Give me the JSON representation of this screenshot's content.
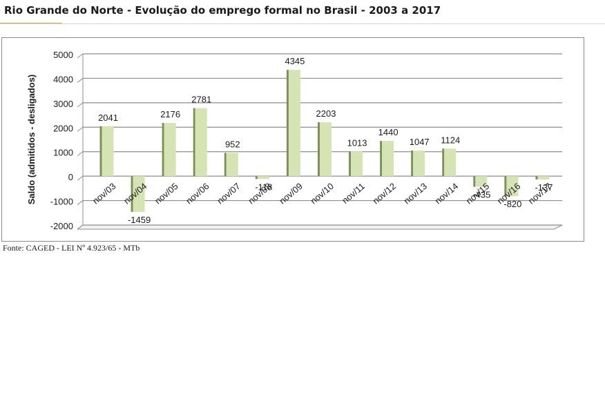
{
  "title": "Rio Grande do Norte - Evolução do emprego formal no Brasil - 2003 a 2017",
  "source": "Fonte: CAGED - LEI Nº 4.923/65 - MTb",
  "colors": {
    "bar_face": "#d6e4b4",
    "bar_shadow": "#7d8e58",
    "grid": "#8c8c8c",
    "text": "#1a1a1a"
  },
  "chart_data": {
    "type": "bar",
    "title": "Rio Grande do Norte - Evolução do emprego formal no Brasil - 2003 a 2017",
    "xlabel": "",
    "ylabel": "Saldo (admitidos - desligados)",
    "ylim": [
      -2000,
      5000
    ],
    "yticks": [
      5000,
      4000,
      3000,
      2000,
      1000,
      0,
      -1000,
      -2000
    ],
    "grid": true,
    "categories": [
      "nov/03",
      "nov/04",
      "nov/05",
      "nov/06",
      "nov/07",
      "nov/08",
      "nov/09",
      "nov/10",
      "nov/11",
      "nov/12",
      "nov/13",
      "nov/14",
      "nov/15",
      "nov/16",
      "nov/17"
    ],
    "values": [
      2041,
      -1459,
      2176,
      2781,
      952,
      -118,
      4345,
      2203,
      1013,
      1440,
      1047,
      1124,
      -435,
      -820,
      -137
    ],
    "data_labels": [
      "2041",
      "-1459",
      "2176",
      "2781",
      "952",
      "-118",
      "4345",
      "2203",
      "1013",
      "1440",
      "1047",
      "1124",
      "-435",
      "-820",
      "-137"
    ]
  }
}
